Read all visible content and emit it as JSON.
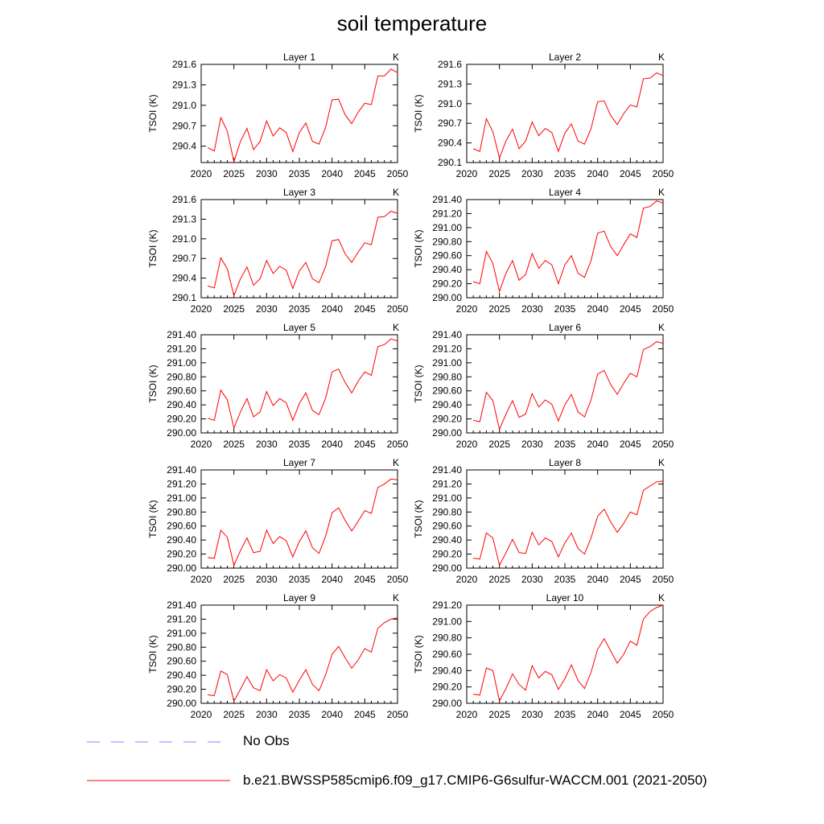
{
  "title": "soil temperature",
  "colors": {
    "series": "#ff0000",
    "obs": "#8080ff",
    "axis": "#000000"
  },
  "legend": [
    {
      "label": "No Obs",
      "style": "dashed",
      "color": "#8080ff"
    },
    {
      "label": "b.e21.BWSSP585cmip6.f09_g17.CMIP6-G6sulfur-WACCM.001 (2021-2050)",
      "style": "solid",
      "color": "#ff0000"
    }
  ],
  "chart_data": [
    {
      "type": "line",
      "title": "Layer 1",
      "units_label": "K",
      "ylabel": "TSOI  (K)",
      "xlim": [
        2020,
        2050
      ],
      "xticks": [
        "2020",
        "2025",
        "2030",
        "2035",
        "2040",
        "2045",
        "2050"
      ],
      "ylim": [
        290.16,
        291.6
      ],
      "yticks": [
        "290.4",
        "290.7",
        "291.0",
        "291.3",
        "291.6"
      ],
      "series": [
        {
          "x": [
            2021,
            2022,
            2023,
            2024,
            2025,
            2026,
            2027,
            2028,
            2029,
            2030,
            2031,
            2032,
            2033,
            2034,
            2035,
            2036,
            2037,
            2038,
            2039,
            2040,
            2041,
            2042,
            2043,
            2044,
            2045,
            2046,
            2047,
            2048,
            2049,
            2050
          ],
          "values": [
            290.38,
            290.33,
            290.82,
            290.62,
            290.17,
            290.47,
            290.66,
            290.35,
            290.47,
            290.77,
            290.55,
            290.67,
            290.6,
            290.32,
            290.6,
            290.74,
            290.47,
            290.43,
            290.67,
            291.08,
            291.09,
            290.86,
            290.73,
            290.9,
            291.03,
            291.01,
            291.43,
            291.43,
            291.53,
            291.48
          ]
        }
      ]
    },
    {
      "type": "line",
      "title": "Layer 2",
      "units_label": "K",
      "ylabel": "TSOI  (K)",
      "xlim": [
        2020,
        2050
      ],
      "xticks": [
        "2020",
        "2025",
        "2030",
        "2035",
        "2040",
        "2045",
        "2050"
      ],
      "ylim": [
        290.1,
        291.6
      ],
      "yticks": [
        "290.1",
        "290.4",
        "290.7",
        "291.0",
        "291.3",
        "291.6"
      ],
      "series": [
        {
          "x": [
            2021,
            2022,
            2023,
            2024,
            2025,
            2026,
            2027,
            2028,
            2029,
            2030,
            2031,
            2032,
            2033,
            2034,
            2035,
            2036,
            2037,
            2038,
            2039,
            2040,
            2041,
            2042,
            2043,
            2044,
            2045,
            2046,
            2047,
            2048,
            2049,
            2050
          ],
          "values": [
            290.31,
            290.27,
            290.77,
            290.57,
            290.17,
            290.43,
            290.61,
            290.31,
            290.43,
            290.72,
            290.51,
            290.62,
            290.56,
            290.27,
            290.55,
            290.69,
            290.43,
            290.38,
            290.62,
            291.03,
            291.04,
            290.82,
            290.68,
            290.85,
            290.98,
            290.95,
            291.38,
            291.39,
            291.47,
            291.43
          ]
        }
      ]
    },
    {
      "type": "line",
      "title": "Layer 3",
      "units_label": "K",
      "ylabel": "TSOI  (K)",
      "xlim": [
        2020,
        2050
      ],
      "xticks": [
        "2020",
        "2025",
        "2030",
        "2035",
        "2040",
        "2045",
        "2050"
      ],
      "ylim": [
        290.1,
        291.6
      ],
      "yticks": [
        "290.1",
        "290.4",
        "290.7",
        "291.0",
        "291.3",
        "291.6"
      ],
      "series": [
        {
          "x": [
            2021,
            2022,
            2023,
            2024,
            2025,
            2026,
            2027,
            2028,
            2029,
            2030,
            2031,
            2032,
            2033,
            2034,
            2035,
            2036,
            2037,
            2038,
            2039,
            2040,
            2041,
            2042,
            2043,
            2044,
            2045,
            2046,
            2047,
            2048,
            2049,
            2050
          ],
          "values": [
            290.28,
            290.25,
            290.71,
            290.54,
            290.13,
            290.39,
            290.57,
            290.29,
            290.39,
            290.67,
            290.47,
            290.58,
            290.52,
            290.24,
            290.51,
            290.64,
            290.39,
            290.33,
            290.57,
            290.97,
            290.99,
            290.77,
            290.64,
            290.8,
            290.94,
            290.91,
            291.33,
            291.34,
            291.42,
            291.39
          ]
        }
      ]
    },
    {
      "type": "line",
      "title": "Layer 4",
      "units_label": "K",
      "ylabel": "TSOI  (K)",
      "xlim": [
        2020,
        2050
      ],
      "xticks": [
        "2020",
        "2025",
        "2030",
        "2035",
        "2040",
        "2045",
        "2050"
      ],
      "ylim": [
        290.0,
        291.4
      ],
      "yticks": [
        "290.00",
        "290.20",
        "290.40",
        "290.60",
        "290.80",
        "291.00",
        "291.20",
        "291.40"
      ],
      "series": [
        {
          "x": [
            2021,
            2022,
            2023,
            2024,
            2025,
            2026,
            2027,
            2028,
            2029,
            2030,
            2031,
            2032,
            2033,
            2034,
            2035,
            2036,
            2037,
            2038,
            2039,
            2040,
            2041,
            2042,
            2043,
            2044,
            2045,
            2046,
            2047,
            2048,
            2049,
            2050
          ],
          "values": [
            290.23,
            290.2,
            290.66,
            290.49,
            290.09,
            290.35,
            290.53,
            290.25,
            290.33,
            290.63,
            290.42,
            290.53,
            290.47,
            290.2,
            290.47,
            290.6,
            290.35,
            290.29,
            290.53,
            290.92,
            290.95,
            290.73,
            290.6,
            290.76,
            290.91,
            290.86,
            291.28,
            291.3,
            291.38,
            291.35
          ]
        }
      ]
    },
    {
      "type": "line",
      "title": "Layer 5",
      "units_label": "K",
      "ylabel": "TSOI  (K)",
      "xlim": [
        2020,
        2050
      ],
      "xticks": [
        "2020",
        "2025",
        "2030",
        "2035",
        "2040",
        "2045",
        "2050"
      ],
      "ylim": [
        290.0,
        291.4
      ],
      "yticks": [
        "290.00",
        "290.20",
        "290.40",
        "290.60",
        "290.80",
        "291.00",
        "291.20",
        "291.40"
      ],
      "series": [
        {
          "x": [
            2021,
            2022,
            2023,
            2024,
            2025,
            2026,
            2027,
            2028,
            2029,
            2030,
            2031,
            2032,
            2033,
            2034,
            2035,
            2036,
            2037,
            2038,
            2039,
            2040,
            2041,
            2042,
            2043,
            2044,
            2045,
            2046,
            2047,
            2048,
            2049,
            2050
          ],
          "values": [
            290.21,
            290.18,
            290.61,
            290.47,
            290.07,
            290.3,
            290.49,
            290.23,
            290.3,
            290.59,
            290.39,
            290.49,
            290.43,
            290.18,
            290.42,
            290.57,
            290.32,
            290.26,
            290.49,
            290.87,
            290.91,
            290.72,
            290.57,
            290.74,
            290.87,
            290.82,
            291.23,
            291.26,
            291.34,
            291.31
          ]
        }
      ]
    },
    {
      "type": "line",
      "title": "Layer 6",
      "units_label": "K",
      "ylabel": "TSOI  (K)",
      "xlim": [
        2020,
        2050
      ],
      "xticks": [
        "2020",
        "2025",
        "2030",
        "2035",
        "2040",
        "2045",
        "2050"
      ],
      "ylim": [
        290.0,
        291.4
      ],
      "yticks": [
        "290.00",
        "290.20",
        "290.40",
        "290.60",
        "290.80",
        "291.00",
        "291.20",
        "291.40"
      ],
      "series": [
        {
          "x": [
            2021,
            2022,
            2023,
            2024,
            2025,
            2026,
            2027,
            2028,
            2029,
            2030,
            2031,
            2032,
            2033,
            2034,
            2035,
            2036,
            2037,
            2038,
            2039,
            2040,
            2041,
            2042,
            2043,
            2044,
            2045,
            2046,
            2047,
            2048,
            2049,
            2050
          ],
          "values": [
            290.18,
            290.16,
            290.58,
            290.46,
            290.05,
            290.27,
            290.46,
            290.22,
            290.27,
            290.56,
            290.37,
            290.47,
            290.41,
            290.17,
            290.4,
            290.55,
            290.3,
            290.23,
            290.47,
            290.84,
            290.89,
            290.69,
            290.55,
            290.71,
            290.85,
            290.8,
            291.19,
            291.23,
            291.3,
            291.28
          ]
        }
      ]
    },
    {
      "type": "line",
      "title": "Layer 7",
      "units_label": "K",
      "ylabel": "TSOI  (K)",
      "xlim": [
        2020,
        2050
      ],
      "xticks": [
        "2020",
        "2025",
        "2030",
        "2035",
        "2040",
        "2045",
        "2050"
      ],
      "ylim": [
        290.0,
        291.4
      ],
      "yticks": [
        "290.00",
        "290.20",
        "290.40",
        "290.60",
        "290.80",
        "291.00",
        "291.20",
        "291.40"
      ],
      "series": [
        {
          "x": [
            2021,
            2022,
            2023,
            2024,
            2025,
            2026,
            2027,
            2028,
            2029,
            2030,
            2031,
            2032,
            2033,
            2034,
            2035,
            2036,
            2037,
            2038,
            2039,
            2040,
            2041,
            2042,
            2043,
            2044,
            2045,
            2046,
            2047,
            2048,
            2049,
            2050
          ],
          "values": [
            290.15,
            290.14,
            290.54,
            290.44,
            290.04,
            290.25,
            290.43,
            290.22,
            290.24,
            290.54,
            290.35,
            290.45,
            290.39,
            290.16,
            290.38,
            290.53,
            290.29,
            290.21,
            290.45,
            290.79,
            290.86,
            290.68,
            290.53,
            290.67,
            290.82,
            290.78,
            291.15,
            291.2,
            291.27,
            291.26
          ]
        }
      ]
    },
    {
      "type": "line",
      "title": "Layer 8",
      "units_label": "K",
      "ylabel": "TSOI  (K)",
      "xlim": [
        2020,
        2050
      ],
      "xticks": [
        "2020",
        "2025",
        "2030",
        "2035",
        "2040",
        "2045",
        "2050"
      ],
      "ylim": [
        290.0,
        291.4
      ],
      "yticks": [
        "290.00",
        "290.20",
        "290.40",
        "290.60",
        "290.80",
        "291.00",
        "291.20",
        "291.40"
      ],
      "series": [
        {
          "x": [
            2021,
            2022,
            2023,
            2024,
            2025,
            2026,
            2027,
            2028,
            2029,
            2030,
            2031,
            2032,
            2033,
            2034,
            2035,
            2036,
            2037,
            2038,
            2039,
            2040,
            2041,
            2042,
            2043,
            2044,
            2045,
            2046,
            2047,
            2048,
            2049,
            2050
          ],
          "values": [
            290.14,
            290.13,
            290.5,
            290.43,
            290.04,
            290.22,
            290.41,
            290.22,
            290.21,
            290.51,
            290.33,
            290.43,
            290.38,
            290.16,
            290.36,
            290.5,
            290.28,
            290.2,
            290.43,
            290.74,
            290.84,
            290.66,
            290.51,
            290.64,
            290.8,
            290.76,
            291.11,
            291.17,
            291.23,
            291.24
          ]
        }
      ]
    },
    {
      "type": "line",
      "title": "Layer 9",
      "units_label": "K",
      "ylabel": "TSOI  (K)",
      "xlim": [
        2020,
        2050
      ],
      "xticks": [
        "2020",
        "2025",
        "2030",
        "2035",
        "2040",
        "2045",
        "2050"
      ],
      "ylim": [
        290.0,
        291.4
      ],
      "yticks": [
        "290.00",
        "290.20",
        "290.40",
        "290.60",
        "290.80",
        "291.00",
        "291.20",
        "291.40"
      ],
      "series": [
        {
          "x": [
            2021,
            2022,
            2023,
            2024,
            2025,
            2026,
            2027,
            2028,
            2029,
            2030,
            2031,
            2032,
            2033,
            2034,
            2035,
            2036,
            2037,
            2038,
            2039,
            2040,
            2041,
            2042,
            2043,
            2044,
            2045,
            2046,
            2047,
            2048,
            2049,
            2050
          ],
          "values": [
            290.12,
            290.11,
            290.46,
            290.41,
            290.03,
            290.2,
            290.38,
            290.22,
            290.18,
            290.48,
            290.32,
            290.41,
            290.36,
            290.16,
            290.33,
            290.48,
            290.27,
            290.18,
            290.4,
            290.7,
            290.81,
            290.65,
            290.5,
            290.62,
            290.78,
            290.73,
            291.07,
            291.15,
            291.2,
            291.22
          ]
        }
      ]
    },
    {
      "type": "line",
      "title": "Layer 10",
      "units_label": "K",
      "ylabel": "TSOI  (K)",
      "xlim": [
        2020,
        2050
      ],
      "xticks": [
        "2020",
        "2025",
        "2030",
        "2035",
        "2040",
        "2045",
        "2050"
      ],
      "ylim": [
        290.0,
        291.2
      ],
      "yticks": [
        "290.00",
        "290.20",
        "290.40",
        "290.60",
        "290.80",
        "291.00",
        "291.20"
      ],
      "series": [
        {
          "x": [
            2021,
            2022,
            2023,
            2024,
            2025,
            2026,
            2027,
            2028,
            2029,
            2030,
            2031,
            2032,
            2033,
            2034,
            2035,
            2036,
            2037,
            2038,
            2039,
            2040,
            2041,
            2042,
            2043,
            2044,
            2045,
            2046,
            2047,
            2048,
            2049,
            2050
          ],
          "values": [
            290.11,
            290.1,
            290.43,
            290.4,
            290.03,
            290.18,
            290.36,
            290.23,
            290.16,
            290.46,
            290.31,
            290.39,
            290.35,
            290.17,
            290.3,
            290.47,
            290.28,
            290.18,
            290.38,
            290.66,
            290.79,
            290.64,
            290.49,
            290.6,
            290.76,
            290.71,
            291.03,
            291.12,
            291.17,
            291.2
          ]
        }
      ]
    }
  ]
}
